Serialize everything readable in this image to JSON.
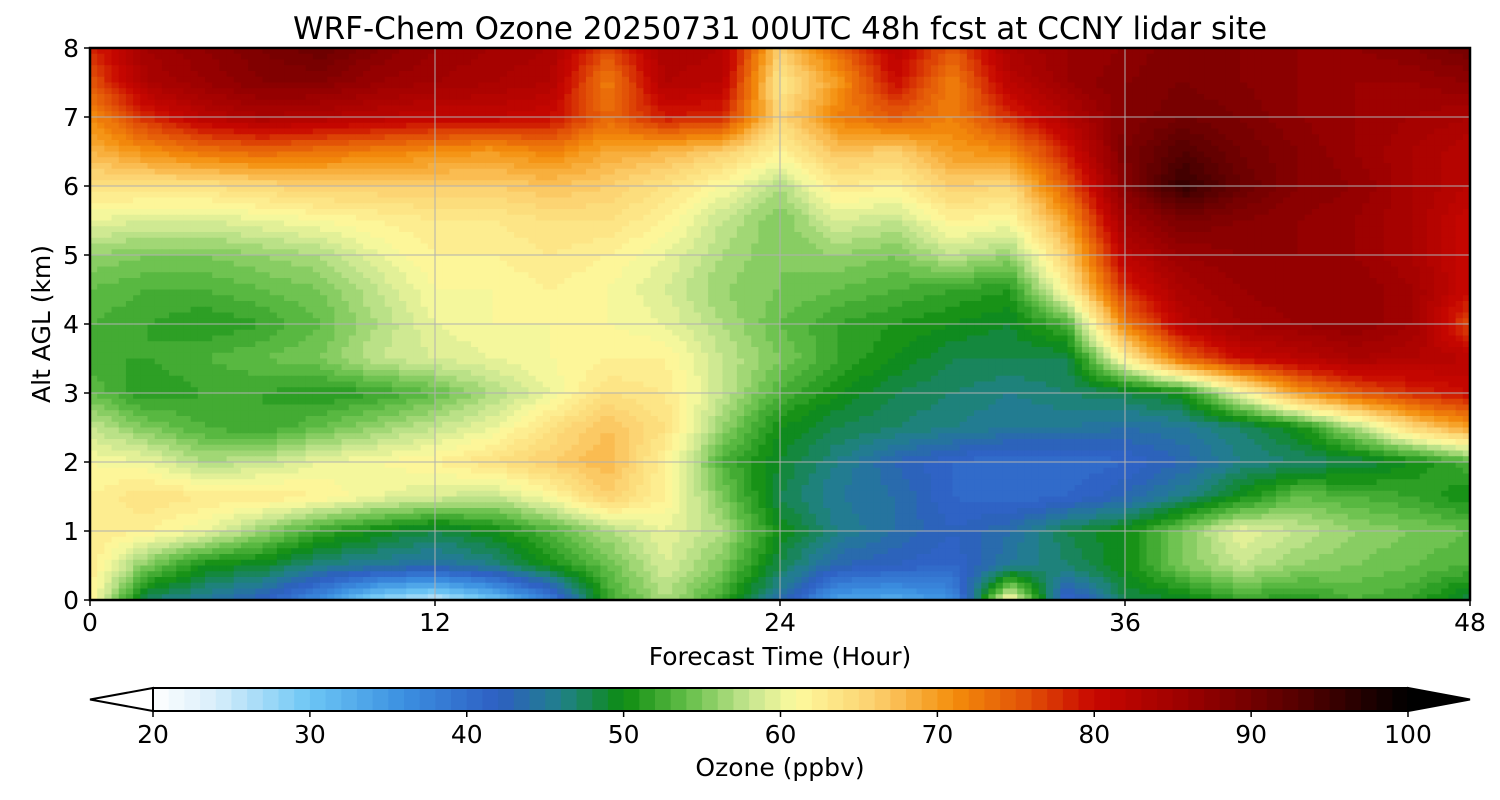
{
  "chart_data": {
    "type": "heatmap",
    "title": "WRF-Chem Ozone  20250731 00UTC 48h fcst at CCNY lidar site",
    "xlabel": "Forecast Time (Hour)",
    "ylabel": "Alt AGL (km)",
    "xlim": [
      0,
      48
    ],
    "ylim": [
      0,
      8
    ],
    "xticks": [
      0,
      12,
      24,
      36,
      48
    ],
    "yticks": [
      0,
      1,
      2,
      3,
      4,
      5,
      6,
      7,
      8
    ],
    "grid": true,
    "x": [
      0,
      2,
      4,
      6,
      8,
      10,
      12,
      14,
      16,
      18,
      20,
      22,
      24,
      26,
      28,
      30,
      32,
      34,
      36,
      38,
      40,
      42,
      44,
      46,
      48
    ],
    "y": [
      0,
      0.5,
      1,
      1.5,
      2,
      2.5,
      3,
      3.5,
      4,
      4.5,
      5,
      5.5,
      6,
      6.5,
      7,
      7.5,
      8
    ],
    "values": [
      [
        62,
        47,
        45,
        42,
        36,
        28,
        25,
        30,
        38,
        52,
        57,
        52,
        44,
        34,
        33,
        36,
        62,
        40,
        48,
        49,
        52,
        51,
        53,
        52,
        48
      ],
      [
        63,
        55,
        50,
        49,
        46,
        45,
        44,
        46,
        50,
        54,
        59,
        55,
        48,
        43,
        42,
        41,
        45,
        47,
        50,
        55,
        58,
        56,
        55,
        54,
        53
      ],
      [
        63,
        62,
        60,
        56,
        52,
        50,
        48,
        50,
        53,
        57,
        60,
        57,
        50,
        46,
        44,
        42,
        44,
        48,
        50,
        55,
        60,
        58,
        56,
        55,
        54
      ],
      [
        62,
        64,
        63,
        63,
        62,
        60,
        59,
        58,
        61,
        66,
        62,
        55,
        48,
        45,
        44,
        41,
        40,
        41,
        43,
        46,
        50,
        54,
        53,
        52,
        50
      ],
      [
        61,
        60,
        57,
        58,
        60,
        61,
        62,
        64,
        66,
        68,
        62,
        53,
        49,
        46,
        43,
        41,
        40,
        40,
        41,
        43,
        46,
        47,
        48,
        50,
        53
      ],
      [
        58,
        55,
        53,
        52,
        54,
        56,
        58,
        60,
        64,
        67,
        64,
        56,
        50,
        48,
        47,
        46,
        45,
        45,
        44,
        45,
        47,
        50,
        57,
        65,
        70
      ],
      [
        54,
        51,
        52,
        52,
        51,
        52,
        54,
        57,
        60,
        64,
        63,
        58,
        53,
        50,
        48,
        47,
        46,
        47,
        48,
        50,
        60,
        70,
        75,
        78,
        80
      ],
      [
        52,
        52,
        53,
        54,
        55,
        58,
        59,
        60,
        61,
        62,
        62,
        58,
        55,
        52,
        50,
        48,
        48,
        48,
        62,
        74,
        80,
        82,
        84,
        83,
        82
      ],
      [
        53,
        52,
        51,
        52,
        54,
        57,
        60,
        61,
        61,
        61,
        60,
        57,
        54,
        52,
        51,
        50,
        49,
        53,
        72,
        82,
        85,
        86,
        87,
        85,
        76
      ],
      [
        54,
        53,
        53,
        54,
        55,
        58,
        61,
        61,
        62,
        61,
        59,
        56,
        55,
        54,
        53,
        52,
        51,
        62,
        78,
        84,
        86,
        87,
        87,
        85,
        80
      ],
      [
        56,
        55,
        55,
        56,
        57,
        60,
        62,
        62,
        63,
        62,
        60,
        57,
        55,
        56,
        55,
        58,
        56,
        66,
        82,
        86,
        87,
        87,
        86,
        84,
        80
      ],
      [
        60,
        59,
        59,
        60,
        61,
        62,
        63,
        63,
        64,
        64,
        62,
        58,
        55,
        59,
        58,
        62,
        61,
        70,
        85,
        89,
        88,
        87,
        86,
        84,
        80
      ],
      [
        64,
        64,
        64,
        65,
        66,
        66,
        66,
        66,
        67,
        66,
        64,
        61,
        57,
        63,
        62,
        66,
        65,
        75,
        88,
        96,
        91,
        88,
        87,
        84,
        82
      ],
      [
        68,
        71,
        73,
        74,
        73,
        72,
        71,
        70,
        72,
        69,
        68,
        66,
        62,
        67,
        66,
        70,
        71,
        79,
        89,
        93,
        90,
        88,
        86,
        84,
        82
      ],
      [
        71,
        78,
        82,
        84,
        83,
        82,
        81,
        81,
        80,
        74,
        79,
        78,
        65,
        72,
        75,
        72,
        78,
        83,
        88,
        90,
        89,
        87,
        86,
        85,
        84
      ],
      [
        75,
        84,
        86,
        88,
        88,
        86,
        85,
        84,
        83,
        72,
        83,
        82,
        63,
        70,
        80,
        72,
        82,
        86,
        88,
        89,
        88,
        87,
        86,
        86,
        87
      ],
      [
        78,
        85,
        87,
        89,
        91,
        88,
        86,
        85,
        84,
        76,
        84,
        83,
        66,
        74,
        82,
        75,
        84,
        86,
        87,
        89,
        88,
        87,
        87,
        88,
        90
      ]
    ],
    "colorbar": {
      "min": 20,
      "max": 100,
      "step": 1,
      "ticks": [
        20,
        30,
        40,
        50,
        60,
        70,
        80,
        90,
        100
      ],
      "label": "Ozone  (ppbv)",
      "extend": "both",
      "stops": [
        {
          "v": 20,
          "c": "#ffffff"
        },
        {
          "v": 24,
          "c": "#d8eefa"
        },
        {
          "v": 30,
          "c": "#6cc6f5"
        },
        {
          "v": 36,
          "c": "#3b8fe0"
        },
        {
          "v": 42,
          "c": "#2e5fc2"
        },
        {
          "v": 46,
          "c": "#20808a"
        },
        {
          "v": 50,
          "c": "#0d8c10"
        },
        {
          "v": 54,
          "c": "#63be48"
        },
        {
          "v": 58,
          "c": "#c6e690"
        },
        {
          "v": 61,
          "c": "#fdfa9e"
        },
        {
          "v": 66,
          "c": "#fcd06e"
        },
        {
          "v": 71,
          "c": "#f48e0c"
        },
        {
          "v": 76,
          "c": "#e04c06"
        },
        {
          "v": 80,
          "c": "#c80600"
        },
        {
          "v": 86,
          "c": "#9a0000"
        },
        {
          "v": 93,
          "c": "#550000"
        },
        {
          "v": 100,
          "c": "#000000"
        }
      ]
    }
  }
}
